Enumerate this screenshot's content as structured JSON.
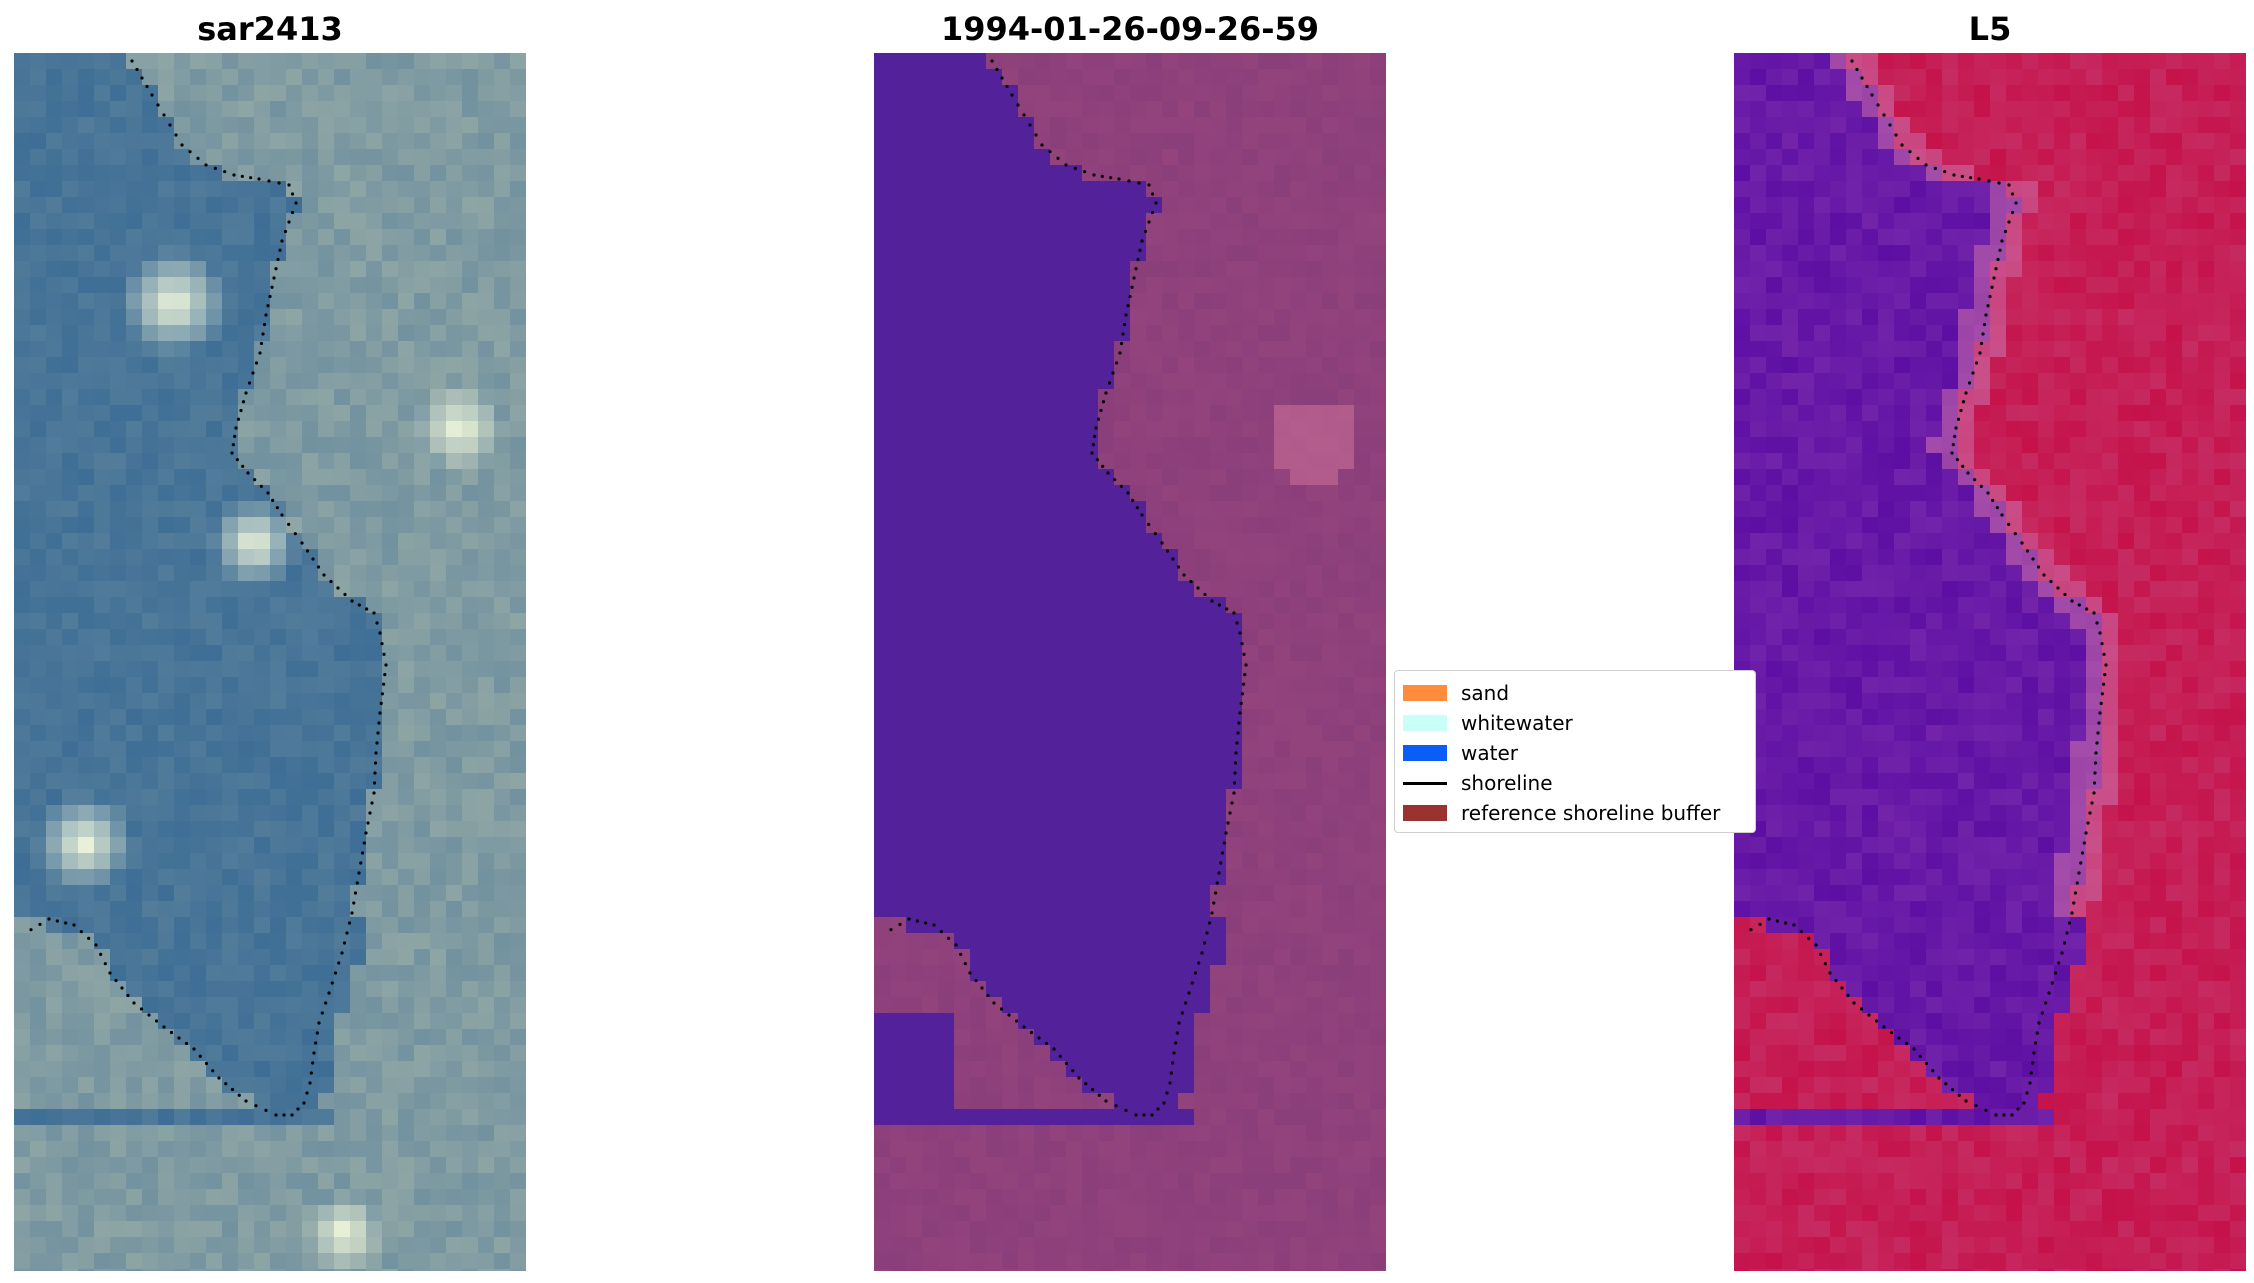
{
  "panels": [
    {
      "title": "sar2413",
      "kind": "rgb"
    },
    {
      "title": "1994-01-26-09-26-59",
      "kind": "classified"
    },
    {
      "title": "L5",
      "kind": "index"
    }
  ],
  "legend": {
    "items": [
      {
        "label": "sand",
        "color": "#ff8c3c",
        "type": "patch"
      },
      {
        "label": "whitewater",
        "color": "#c8fff6",
        "type": "patch"
      },
      {
        "label": "water",
        "color": "#0a5ef5",
        "type": "patch"
      },
      {
        "label": "shoreline",
        "color": "#000000",
        "type": "line"
      },
      {
        "label": "reference shoreline buffer",
        "color": "#9a3230",
        "type": "patch"
      }
    ]
  },
  "colors": {
    "rgb_water": "#3e6e96",
    "rgb_land": "#8ea5a5",
    "rgb_bright": "#f2f8dc",
    "classified_water": "#53229a",
    "classified_land": "#8a3e7a",
    "index_low": "#5d0fa3",
    "index_high": "#c5124b",
    "shoreline_dots": "#000000"
  }
}
